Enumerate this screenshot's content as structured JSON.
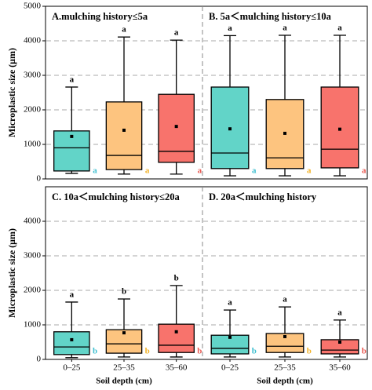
{
  "chart_data": [
    {
      "type": "box",
      "title": "A.mulching history≤5a",
      "ylabel": "Microplastic size (μm)",
      "categories": [
        null,
        null,
        null
      ],
      "colors": [
        "#62d4c8",
        "#fdc47f",
        "#f8736c"
      ],
      "label_colors": [
        "#3fbfd0",
        "#f2b32a",
        "#ea5a52"
      ],
      "min": [
        160,
        140,
        140
      ],
      "q1": [
        230,
        270,
        480
      ],
      "median": [
        900,
        680,
        800
      ],
      "q3": [
        1390,
        2230,
        2450
      ],
      "max": [
        2660,
        4110,
        4020
      ],
      "mean": [
        1230,
        1410,
        1520
      ],
      "top_labels": [
        "a",
        "a",
        "a"
      ],
      "bottom_labels": [
        "a",
        "a",
        "a"
      ],
      "ylim": [
        0,
        5000
      ],
      "yticks": [
        0,
        1000,
        2000,
        3000,
        4000,
        5000
      ],
      "grid": true
    },
    {
      "type": "box",
      "title": "B. 5a＜mulching history≤10a",
      "categories": [
        null,
        null,
        null
      ],
      "colors": [
        "#62d4c8",
        "#fdc47f",
        "#f8736c"
      ],
      "label_colors": [
        "#3fbfd0",
        "#f2b32a",
        "#ea5a52"
      ],
      "min": [
        90,
        90,
        90
      ],
      "q1": [
        300,
        300,
        320
      ],
      "median": [
        750,
        610,
        860
      ],
      "q3": [
        2660,
        2300,
        2660
      ],
      "max": [
        4150,
        4160,
        4160
      ],
      "mean": [
        1450,
        1320,
        1440
      ],
      "top_labels": [
        "a",
        "a",
        "a"
      ],
      "bottom_labels": [
        "a",
        "a",
        "a"
      ],
      "ylim": [
        0,
        5000
      ],
      "yticks": [
        1000,
        2000,
        3000,
        4000
      ],
      "grid": true
    },
    {
      "type": "box",
      "title": "C. 10a＜mulching history≤20a",
      "ylabel": "Microplastic size (μm)",
      "xlabel": "Soil depth (cm)",
      "categories": [
        "0–25",
        "25–35",
        "35–60"
      ],
      "colors": [
        "#62d4c8",
        "#fdc47f",
        "#f8736c"
      ],
      "label_colors": [
        "#3fbfd0",
        "#f2b32a",
        "#ea5a52"
      ],
      "min": [
        50,
        70,
        70
      ],
      "q1": [
        140,
        180,
        200
      ],
      "median": [
        360,
        450,
        410
      ],
      "q3": [
        800,
        860,
        1020
      ],
      "max": [
        1660,
        1750,
        2140
      ],
      "mean": [
        570,
        770,
        800
      ],
      "top_labels": [
        "a",
        "b",
        "b"
      ],
      "bottom_labels": [
        "b",
        "b",
        "b"
      ],
      "ylim": [
        0,
        5000
      ],
      "yticks": [
        0,
        1000,
        2000,
        3000,
        4000
      ],
      "grid": true
    },
    {
      "type": "box",
      "title": "D. 20a＜mulching history",
      "xlabel": "Soil depth (cm)",
      "categories": [
        "0–25",
        "25–35",
        "35–60"
      ],
      "colors": [
        "#62d4c8",
        "#fdc47f",
        "#f8736c"
      ],
      "label_colors": [
        "#3fbfd0",
        "#f2b32a",
        "#ea5a52"
      ],
      "min": [
        70,
        70,
        70
      ],
      "q1": [
        160,
        200,
        160
      ],
      "median": [
        320,
        380,
        270
      ],
      "q3": [
        700,
        750,
        570
      ],
      "max": [
        1430,
        1520,
        1140
      ],
      "mean": [
        640,
        660,
        500
      ],
      "top_labels": [
        "a",
        "a",
        "a"
      ],
      "bottom_labels": [
        "b",
        "b",
        "b"
      ],
      "ylim": [
        0,
        5000
      ],
      "yticks": [
        1000,
        2000,
        3000,
        4000
      ],
      "grid": true
    }
  ]
}
